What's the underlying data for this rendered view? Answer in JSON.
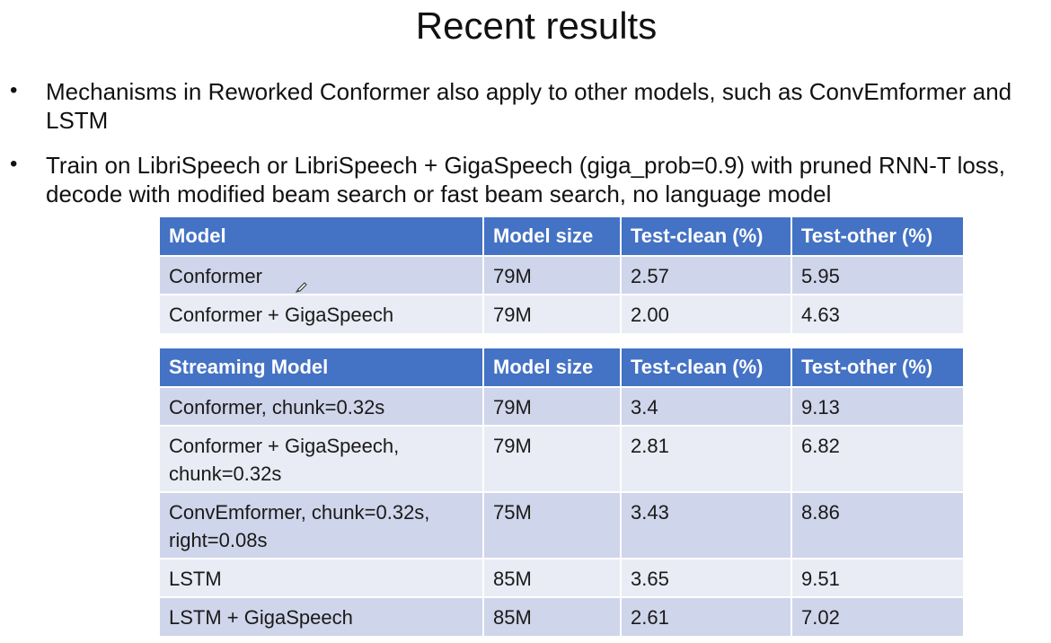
{
  "slide": {
    "title": "Recent results",
    "bullets": [
      "Mechanisms in Reworked Conformer also apply to other models, such as ConvEmformer and LSTM",
      "Train on LibriSpeech or LibriSpeech + GigaSpeech (giga_prob=0.9) with pruned RNN-T loss, decode with modified beam search or fast beam search, no language model"
    ],
    "bullet_glyph": "•"
  },
  "table1": {
    "headers": [
      "Model",
      "Model size",
      "Test-clean (%)",
      "Test-other (%)"
    ],
    "rows": [
      [
        "Conformer",
        "79M",
        "2.57",
        "5.95"
      ],
      [
        "Conformer + GigaSpeech",
        "79M",
        "2.00",
        "4.63"
      ]
    ]
  },
  "table2": {
    "headers": [
      "Streaming Model",
      "Model size",
      "Test-clean (%)",
      "Test-other (%)"
    ],
    "rows": [
      [
        "Conformer, chunk=0.32s",
        "79M",
        "3.4",
        "9.13"
      ],
      [
        "Conformer + GigaSpeech, chunk=0.32s",
        "79M",
        "2.81",
        "6.82"
      ],
      [
        "ConvEmformer, chunk=0.32s, right=0.08s",
        "75M",
        "3.43",
        "8.86"
      ],
      [
        "LSTM",
        "85M",
        "3.65",
        "9.51"
      ],
      [
        "LSTM + GigaSpeech",
        "85M",
        "2.61",
        "7.02"
      ]
    ]
  },
  "colors": {
    "header_bg": "#4472c4",
    "row_dark": "#cfd5ea",
    "row_light": "#e9ebf5"
  },
  "cursor_icon": "pen-cursor-icon"
}
